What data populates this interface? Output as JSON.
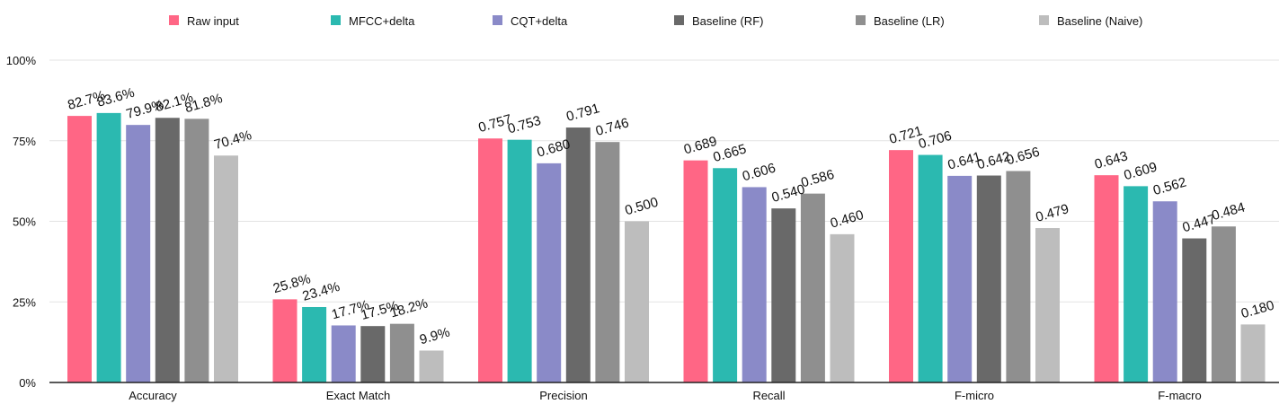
{
  "chart_data": {
    "type": "bar",
    "title": "",
    "xlabel": "",
    "ylabel": "",
    "ylim": [
      0,
      1
    ],
    "yticks": [
      {
        "value": 0,
        "label": "0%"
      },
      {
        "value": 0.25,
        "label": "25%"
      },
      {
        "value": 0.5,
        "label": "50%"
      },
      {
        "value": 0.75,
        "label": "75%"
      },
      {
        "value": 1,
        "label": "100%"
      }
    ],
    "grid": true,
    "legend_position": "top",
    "categories": [
      "Accuracy",
      "Exact Match",
      "Precision",
      "Recall",
      "F-micro",
      "F-macro"
    ],
    "series": [
      {
        "name": "Raw input",
        "color": "#FF6685",
        "values": [
          0.827,
          0.258,
          0.757,
          0.689,
          0.721,
          0.643
        ],
        "labels": [
          "82.7%",
          "25.8%",
          "0.757",
          "0.689",
          "0.721",
          "0.643"
        ]
      },
      {
        "name": "MFCC+delta",
        "color": "#2BB9B0",
        "values": [
          0.836,
          0.234,
          0.753,
          0.665,
          0.706,
          0.609
        ],
        "labels": [
          "83.6%",
          "23.4%",
          "0.753",
          "0.665",
          "0.706",
          "0.609"
        ]
      },
      {
        "name": "CQT+delta",
        "color": "#8A8AC8",
        "values": [
          0.799,
          0.177,
          0.68,
          0.606,
          0.641,
          0.562
        ],
        "labels": [
          "79.9%",
          "17.7%",
          "0.680",
          "0.606",
          "0.641",
          "0.562"
        ]
      },
      {
        "name": "Baseline (RF)",
        "color": "#696969",
        "values": [
          0.821,
          0.175,
          0.791,
          0.54,
          0.642,
          0.447
        ],
        "labels": [
          "82.1%",
          "17.5%",
          "0.791",
          "0.540",
          "0.642",
          "0.447"
        ]
      },
      {
        "name": "Baseline (LR)",
        "color": "#8F8F8F",
        "values": [
          0.818,
          0.182,
          0.746,
          0.586,
          0.656,
          0.484
        ],
        "labels": [
          "81.8%",
          "18.2%",
          "0.746",
          "0.586",
          "0.656",
          "0.484"
        ]
      },
      {
        "name": "Baseline (Naive)",
        "color": "#BDBDBD",
        "values": [
          0.704,
          0.099,
          0.5,
          0.46,
          0.479,
          0.18
        ],
        "labels": [
          "70.4%",
          "9.9%",
          "0.500",
          "0.460",
          "0.479",
          "0.180"
        ]
      }
    ]
  }
}
